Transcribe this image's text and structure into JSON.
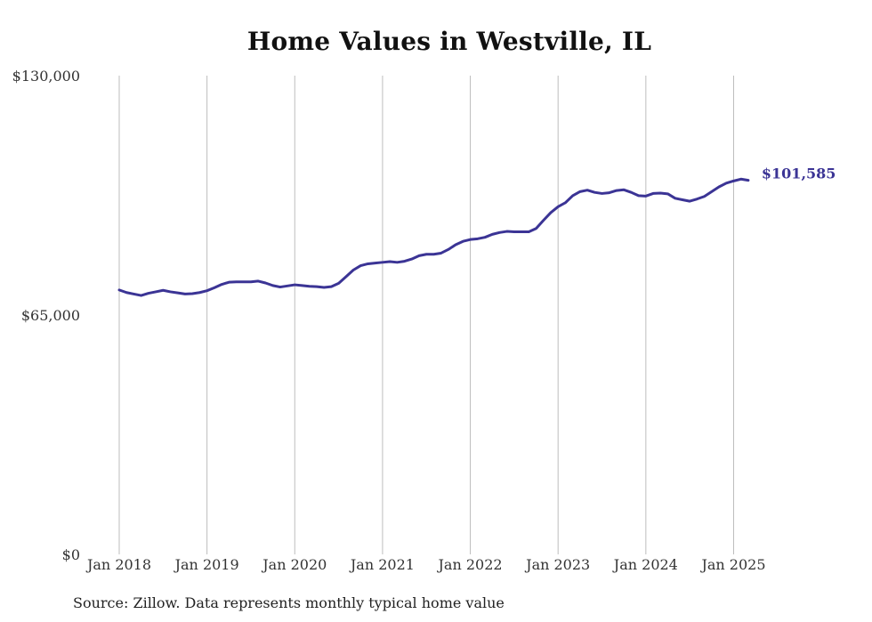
{
  "chart_data": {
    "type": "line",
    "title": "Home Values in Westville, IL",
    "xlabel": "",
    "ylabel": "",
    "ylim": [
      0,
      130000
    ],
    "y_ticks": [
      {
        "value": 0,
        "label": "$0"
      },
      {
        "value": 65000,
        "label": "$65,000"
      },
      {
        "value": 130000,
        "label": "$130,000"
      }
    ],
    "x_ticks": [
      {
        "index": 0,
        "label": "Jan 2018"
      },
      {
        "index": 12,
        "label": "Jan 2019"
      },
      {
        "index": 24,
        "label": "Jan 2020"
      },
      {
        "index": 36,
        "label": "Jan 2021"
      },
      {
        "index": 48,
        "label": "Jan 2022"
      },
      {
        "index": 60,
        "label": "Jan 2023"
      },
      {
        "index": 72,
        "label": "Jan 2024"
      },
      {
        "index": 84,
        "label": "Jan 2025"
      }
    ],
    "grid": {
      "vertical": true,
      "horizontal": false
    },
    "series": [
      {
        "color": "#3b3495",
        "end_label": "$101,585",
        "x_start": "2018-01",
        "x_end": "2025-07",
        "values": [
          71800,
          71100,
          70700,
          70300,
          70900,
          71300,
          71700,
          71300,
          71000,
          70700,
          70800,
          71100,
          71600,
          72400,
          73300,
          73900,
          74000,
          74000,
          74000,
          74200,
          73700,
          73000,
          72600,
          72900,
          73200,
          73000,
          72800,
          72700,
          72500,
          72700,
          73600,
          75400,
          77200,
          78400,
          78900,
          79100,
          79300,
          79500,
          79300,
          79600,
          80200,
          81100,
          81500,
          81500,
          81800,
          82800,
          84100,
          85000,
          85500,
          85700,
          86100,
          86900,
          87400,
          87700,
          87600,
          87600,
          87600,
          88500,
          90700,
          92800,
          94400,
          95500,
          97400,
          98500,
          98900,
          98300,
          98000,
          98200,
          98800,
          99000,
          98300,
          97400,
          97300,
          98000,
          98100,
          97900,
          96700,
          96300,
          95900,
          96500,
          97200,
          98500,
          99800,
          100800,
          101400,
          101900,
          101585
        ]
      }
    ]
  },
  "source_note": "Source: Zillow. Data represents monthly typical home value"
}
